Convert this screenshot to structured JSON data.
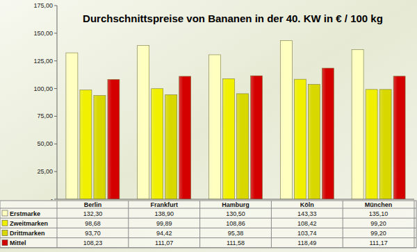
{
  "chart_data": {
    "type": "bar",
    "title": "Durchschnittspreise von Bananen in der 40. KW in € / 100 kg",
    "categories": [
      "Berlin",
      "Frankfurt",
      "Hamburg",
      "Köln",
      "München"
    ],
    "series": [
      {
        "name": "Erstmarke",
        "color": "#ffffc0",
        "values": [
          132.3,
          138.9,
          130.5,
          143.33,
          135.1
        ],
        "value_labels": [
          "132,30",
          "138,90",
          "130,50",
          "143,33",
          "135,10"
        ]
      },
      {
        "name": "Zweitmarken",
        "color": "#f0f000",
        "values": [
          98.68,
          99.89,
          108.86,
          108.42,
          99.2
        ],
        "value_labels": [
          "98,68",
          "99,89",
          "108,86",
          "108,42",
          "99,20"
        ]
      },
      {
        "name": "Drittmarken",
        "color": "#d8d800",
        "values": [
          93.7,
          94.42,
          95.38,
          103.74,
          99.2
        ],
        "value_labels": [
          "93,70",
          "94,42",
          "95,38",
          "103,74",
          "99,20"
        ]
      },
      {
        "name": "Mittel",
        "color": "#d40000",
        "values": [
          108.23,
          111.07,
          111.58,
          118.49,
          111.17
        ],
        "value_labels": [
          "108,23",
          "111,07",
          "111,58",
          "118,49",
          "111,17"
        ]
      }
    ],
    "ylim": [
      0,
      175
    ],
    "yticks": [
      {
        "value": 0,
        "label": "-"
      },
      {
        "value": 25,
        "label": "25,00"
      },
      {
        "value": 50,
        "label": "50,00"
      },
      {
        "value": 75,
        "label": "75,00"
      },
      {
        "value": 100,
        "label": "100,00"
      },
      {
        "value": 125,
        "label": "125,00"
      },
      {
        "value": 150,
        "label": "150,00"
      },
      {
        "value": 175,
        "label": "175,00"
      }
    ],
    "grid": false
  }
}
